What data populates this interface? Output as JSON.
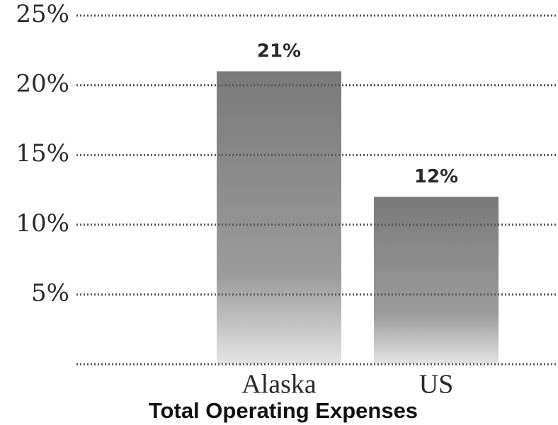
{
  "chart_data": {
    "type": "bar",
    "xlabel": "Total Operating Expenses",
    "categories": [
      "Alaska",
      "US"
    ],
    "values": [
      21,
      12
    ],
    "value_labels": [
      "21%",
      "12%"
    ],
    "color": "#7a7a7a",
    "ylim": [
      0,
      25
    ],
    "yticks": [
      {
        "value": 5,
        "label": "5%"
      },
      {
        "value": 10,
        "label": "10%"
      },
      {
        "value": 15,
        "label": "15%"
      },
      {
        "value": 20,
        "label": "20%"
      },
      {
        "value": 25,
        "label": "25%"
      }
    ],
    "grid": true
  }
}
